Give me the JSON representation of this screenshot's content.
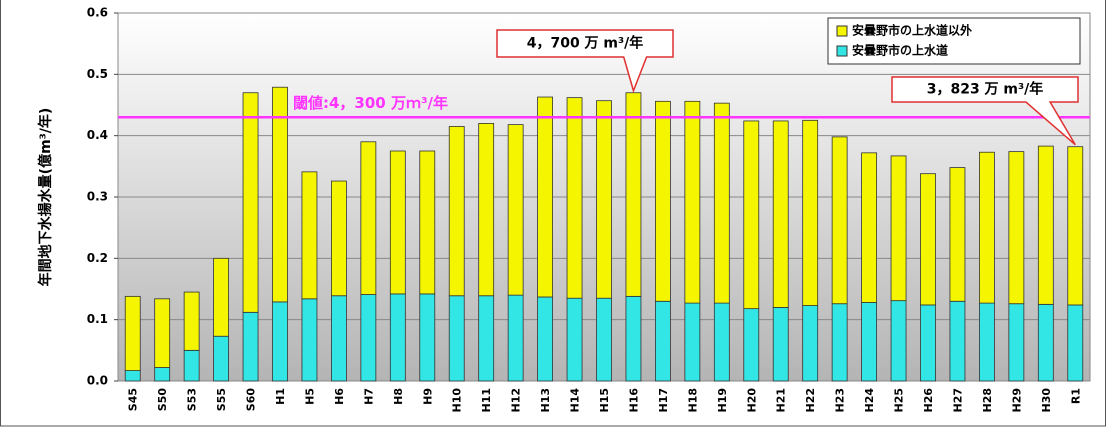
{
  "chart_data": {
    "type": "stacked_bar",
    "y_label": "年間地下水揚水量(億m³/年)",
    "categories": [
      "S45",
      "S50",
      "S53",
      "S55",
      "S60",
      "H1",
      "H5",
      "H6",
      "H7",
      "H8",
      "H9",
      "H10",
      "H11",
      "H12",
      "H13",
      "H14",
      "H15",
      "H16",
      "H17",
      "H18",
      "H19",
      "H20",
      "H21",
      "H22",
      "H23",
      "H24",
      "H25",
      "H26",
      "H27",
      "H28",
      "H29",
      "H30",
      "R1"
    ],
    "series": [
      {
        "name": "安曇野市の上水道",
        "color": "#33e6e6",
        "values": [
          0.017,
          0.022,
          0.05,
          0.073,
          0.112,
          0.129,
          0.134,
          0.139,
          0.141,
          0.142,
          0.142,
          0.139,
          0.139,
          0.14,
          0.137,
          0.135,
          0.135,
          0.138,
          0.13,
          0.127,
          0.127,
          0.118,
          0.12,
          0.123,
          0.126,
          0.128,
          0.131,
          0.124,
          0.13,
          0.127,
          0.126,
          0.125,
          0.124
        ]
      },
      {
        "name": "安曇野市の上水道以外",
        "color": "#f5f500",
        "values": [
          0.121,
          0.112,
          0.095,
          0.127,
          0.358,
          0.35,
          0.207,
          0.187,
          0.249,
          0.233,
          0.233,
          0.276,
          0.281,
          0.278,
          0.326,
          0.327,
          0.322,
          0.332,
          0.326,
          0.329,
          0.326,
          0.306,
          0.304,
          0.302,
          0.272,
          0.244,
          0.236,
          0.214,
          0.218,
          0.246,
          0.248,
          0.258,
          0.258
        ]
      }
    ],
    "ylim": [
      0,
      0.6
    ],
    "yticks": [
      {
        "value": 0,
        "label": "0.0"
      },
      0.1,
      0.2,
      0.3,
      0.4,
      0.5,
      0.6
    ],
    "grid": true,
    "threshold": {
      "value": 0.43,
      "label": "閾値:4，300 万ｍ³/年",
      "color": "#ff33ff"
    },
    "annotations": [
      {
        "text": "4，700 万 m³/年"
      },
      {
        "text": "3，823 万 m³/年"
      }
    ],
    "legend": "upper right"
  }
}
